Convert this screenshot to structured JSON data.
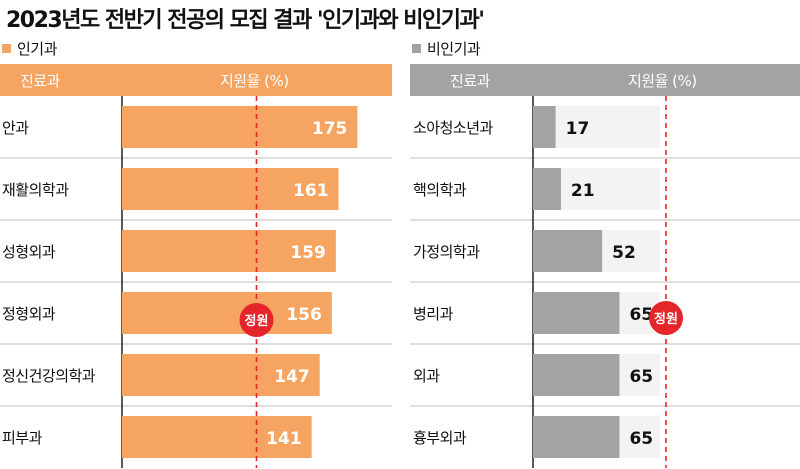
{
  "title": "2023년도 전반기 전공의 모집 결과 '인기과와 비인기과'",
  "colors": {
    "popular": "#F5A462",
    "unpopular": "#A3A3A3",
    "track": "#F3F3F3",
    "quota": "#E5252A"
  },
  "quota_label": "정원",
  "chart_data": [
    {
      "type": "bar",
      "orientation": "horizontal",
      "panel_title": "인기과",
      "category_header": "진료과",
      "value_header": "지원율 (%)",
      "categories": [
        "안과",
        "재활의학과",
        "성형외과",
        "정형외과",
        "정신건강의학과",
        "피부과"
      ],
      "values": [
        175,
        161,
        159,
        156,
        147,
        141
      ],
      "reference_line": {
        "value": 100,
        "label": "정원"
      },
      "xlim": [
        0,
        200
      ]
    },
    {
      "type": "bar",
      "orientation": "horizontal",
      "panel_title": "비인기과",
      "category_header": "진료과",
      "value_header": "지원율 (%)",
      "categories": [
        "소아청소년과",
        "핵의학과",
        "가정의학과",
        "병리과",
        "외과",
        "흉부외과"
      ],
      "values": [
        17,
        21,
        52,
        65,
        65,
        65
      ],
      "reference_line": {
        "value": 100,
        "label": "정원"
      },
      "xlim": [
        0,
        200
      ]
    }
  ]
}
